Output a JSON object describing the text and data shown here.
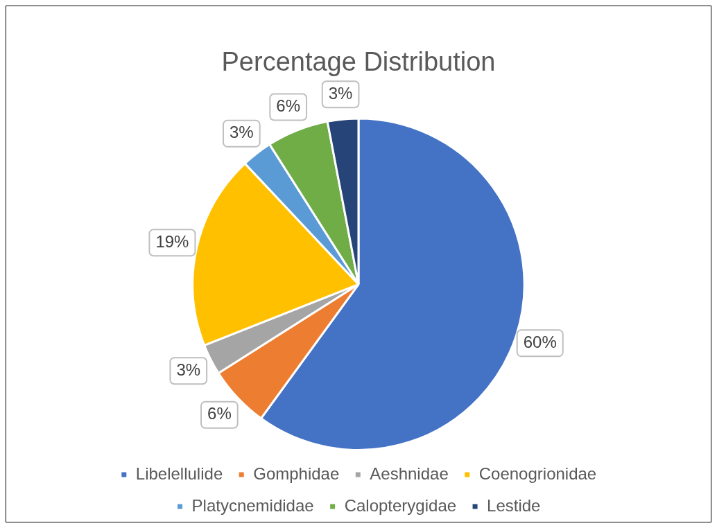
{
  "chart_data": {
    "type": "pie",
    "title": "Percentage Distribution",
    "categories": [
      "Libelellulide",
      "Gomphidae",
      "Aeshnidae",
      "Coenogrionidae",
      "Platycnemididae",
      "Calopterygidae",
      "Lestide"
    ],
    "values": [
      60,
      6,
      3,
      19,
      3,
      6,
      3
    ],
    "colors": [
      "#4472c4",
      "#ed7d31",
      "#a5a5a5",
      "#ffc000",
      "#5b9bd5",
      "#70ad47",
      "#264478"
    ],
    "value_labels": [
      "60%",
      "6%",
      "3%",
      "19%",
      "3%",
      "6%",
      "3%"
    ],
    "legend": "bottom"
  }
}
